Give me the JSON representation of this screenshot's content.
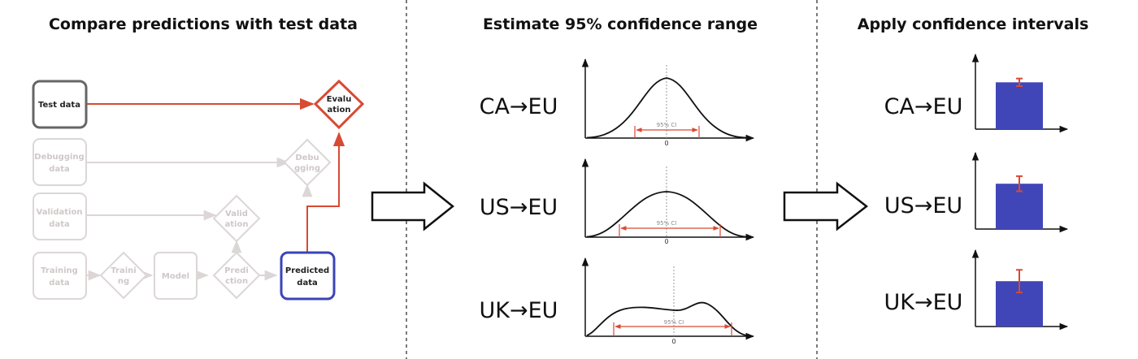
{
  "sections": [
    {
      "title": "Compare predictions with test data"
    },
    {
      "title": "Estimate 95% confidence range"
    },
    {
      "title": "Apply confidence intervals"
    }
  ],
  "pipeline": {
    "nodes": {
      "test_data": [
        "Test data"
      ],
      "debugging_data": [
        "Debugging",
        "data"
      ],
      "validation_data": [
        "Validation",
        "data"
      ],
      "training_data": [
        "Training",
        "data"
      ],
      "training": [
        "Traini",
        "ng"
      ],
      "model": [
        "Model"
      ],
      "prediction": [
        "Predi",
        "ction"
      ],
      "validation": [
        "Valid",
        "ation"
      ],
      "debugging": [
        "Debu",
        "gging"
      ],
      "evaluation": [
        "Evalu",
        "ation"
      ],
      "predicted_data": [
        "Predicted",
        "data"
      ]
    },
    "colors": {
      "active": "#d84a33",
      "faded": "#dcd6d6",
      "test_border": "#666666",
      "predicted_border": "#3a44b8"
    }
  },
  "distributions": [
    {
      "route": "CA→EU",
      "ci_label": "95% CI",
      "zero_label": "0"
    },
    {
      "route": "US→EU",
      "ci_label": "95% CI",
      "zero_label": "0"
    },
    {
      "route": "UK→EU",
      "ci_label": "95% CI",
      "zero_label": "0"
    }
  ],
  "chart_data": [
    {
      "type": "bar",
      "categories": [
        "CA→EU"
      ],
      "values": [
        0.62
      ],
      "error": [
        0.1
      ],
      "color": "#4046b8",
      "error_color": "#d84a33"
    },
    {
      "type": "bar",
      "categories": [
        "US→EU"
      ],
      "values": [
        0.6
      ],
      "error": [
        0.2
      ],
      "color": "#4046b8",
      "error_color": "#d84a33"
    },
    {
      "type": "bar",
      "categories": [
        "UK→EU"
      ],
      "values": [
        0.6
      ],
      "error": [
        0.3
      ],
      "color": "#4046b8",
      "error_color": "#d84a33"
    }
  ],
  "icons": [
    "right-arrow-icon",
    "right-arrow-icon"
  ]
}
